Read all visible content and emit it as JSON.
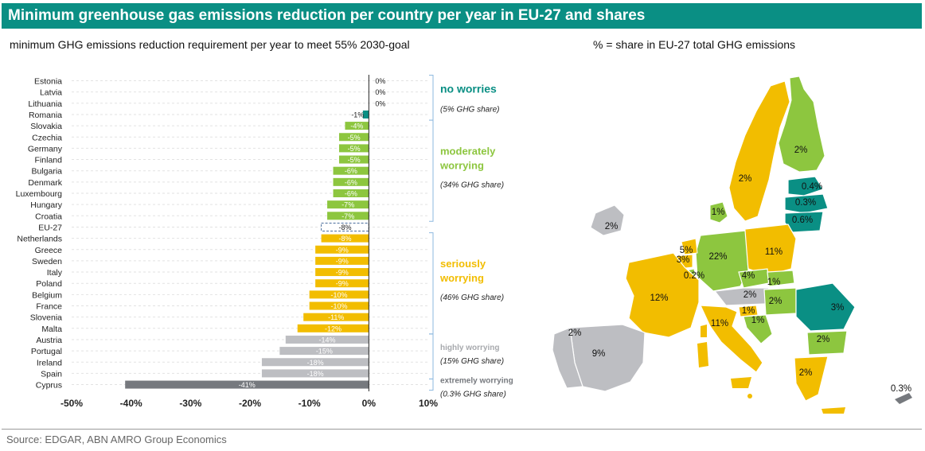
{
  "title": "Minimum greenhouse gas emissions reduction per country per year in EU-27 and shares",
  "subtitle_left": "minimum GHG emissions reduction requirement per year to meet 55% 2030-goal",
  "subtitle_right": "% = share in EU-27 total GHG emissions",
  "source": "Source: EDGAR, ABN AMRO Group Economics",
  "colors": {
    "no_worries": "#0a8f84",
    "moderately_worrying": "#8dc63f",
    "seriously_worrying": "#f2bd00",
    "highly_worrying": "#bdbec2",
    "extremely_worrying": "#76797e",
    "eu27_outline": "#4a6d9c",
    "bracket": "#8db8df"
  },
  "chart_data": {
    "type": "bar",
    "orientation": "horizontal",
    "categories": [
      "Estonia",
      "Latvia",
      "Lithuania",
      "Romania",
      "Slovakia",
      "Czechia",
      "Germany",
      "Finland",
      "Bulgaria",
      "Denmark",
      "Luxembourg",
      "Hungary",
      "Croatia",
      "EU-27",
      "Netherlands",
      "Greece",
      "Sweden",
      "Italy",
      "Poland",
      "Belgium",
      "France",
      "Slovenia",
      "Malta",
      "Austria",
      "Portugal",
      "Ireland",
      "Spain",
      "Cyprus"
    ],
    "values": [
      0,
      0,
      0,
      -1,
      -4,
      -5,
      -5,
      -5,
      -6,
      -6,
      -6,
      -7,
      -7,
      -8,
      -8,
      -9,
      -9,
      -9,
      -9,
      -10,
      -10,
      -11,
      -12,
      -14,
      -15,
      -18,
      -18,
      -41
    ],
    "data_labels": [
      "0%",
      "0%",
      "0%",
      "-1%",
      "-4%",
      "-5%",
      "-5%",
      "-5%",
      "-6%",
      "-6%",
      "-6%",
      "-7%",
      "-7%",
      "-8%",
      "-8%",
      "-9%",
      "-9%",
      "-9%",
      "-9%",
      "-10%",
      "-10%",
      "-11%",
      "-12%",
      "-14%",
      "-15%",
      "-18%",
      "-18%",
      "-41%"
    ],
    "groups": [
      "no_worries",
      "no_worries",
      "no_worries",
      "no_worries",
      "moderately_worrying",
      "moderately_worrying",
      "moderately_worrying",
      "moderately_worrying",
      "moderately_worrying",
      "moderately_worrying",
      "moderately_worrying",
      "moderately_worrying",
      "moderately_worrying",
      "eu27",
      "seriously_worrying",
      "seriously_worrying",
      "seriously_worrying",
      "seriously_worrying",
      "seriously_worrying",
      "seriously_worrying",
      "seriously_worrying",
      "seriously_worrying",
      "seriously_worrying",
      "highly_worrying",
      "highly_worrying",
      "highly_worrying",
      "highly_worrying",
      "extremely_worrying"
    ],
    "xlim": [
      -50,
      10
    ],
    "xticks": [
      -50,
      -40,
      -30,
      -20,
      -10,
      0,
      10
    ],
    "xtick_labels": [
      "-50%",
      "-40%",
      "-30%",
      "-20%",
      "-10%",
      "0%",
      "10%"
    ],
    "grid": true,
    "annotations": [
      {
        "key": "no_worries",
        "label": "no worries",
        "share": "(5% GHG share)",
        "first": 0,
        "last": 3
      },
      {
        "key": "moderately_worrying",
        "label_lines": [
          "moderately",
          "worrying"
        ],
        "share": "(34% GHG share)",
        "first": 4,
        "last": 12
      },
      {
        "key": "seriously_worrying",
        "label_lines": [
          "seriously",
          "worrying"
        ],
        "share": "(46% GHG share)",
        "first": 14,
        "last": 22
      },
      {
        "key": "highly_worrying",
        "label": "highly worrying",
        "share": "(15% GHG share)",
        "first": 23,
        "last": 26
      },
      {
        "key": "extremely_worrying",
        "label": "extremely worrying",
        "share": "(0.3% GHG share)",
        "first": 27,
        "last": 27
      }
    ]
  },
  "map_labels": [
    "2%",
    "0.4%",
    "0.3%",
    "0.6%",
    "2%",
    "1%",
    "2%",
    "5%",
    "3%",
    "22%",
    "11%",
    "0.2%",
    "4%",
    "12%",
    "1%",
    "2%",
    "2%",
    "3%",
    "1%",
    "11%",
    "1%",
    "2%",
    "9%",
    "2%",
    "2%",
    "0.3%"
  ]
}
